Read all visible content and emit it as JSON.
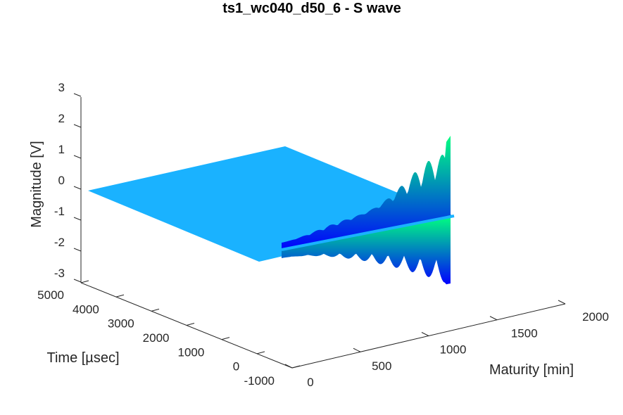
{
  "chart_data": {
    "type": "surface3d",
    "title": "ts1_wc040_d50_6 - S wave",
    "xlabel": "Maturity [min]",
    "ylabel": "Time [µsec]",
    "zlabel": "Magnitude [V]",
    "x_ticks": [
      0,
      500,
      1000,
      1500,
      2000
    ],
    "y_ticks": [
      -1000,
      0,
      1000,
      2000,
      3000,
      4000,
      5000
    ],
    "z_ticks": [
      -3,
      -2,
      -1,
      0,
      1,
      2,
      3
    ],
    "xlim": [
      0,
      2000
    ],
    "ylim": [
      -1000,
      5000
    ],
    "zlim": [
      -3,
      3
    ],
    "grid": false,
    "colormap": "winter",
    "plane_color": "#1ab2ff",
    "data_extent": {
      "maturity_range": [
        0,
        2000
      ],
      "time_range": [
        0,
        5000
      ]
    },
    "signal": {
      "onset_time_usec": 0,
      "max_magnitude_V": 2.0,
      "min_magnitude_V": -3.0
    }
  }
}
